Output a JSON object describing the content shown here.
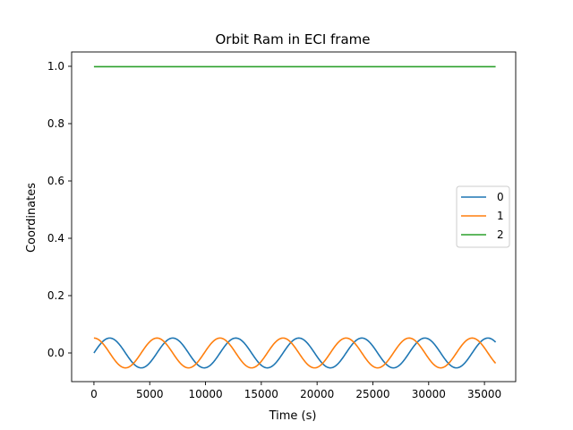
{
  "chart_data": {
    "type": "line",
    "title": "Orbit Ram in ECI frame",
    "xlabel": "Time (s)",
    "ylabel": "Coordinates",
    "xlim": [
      -2000,
      37800
    ],
    "ylim": [
      -0.1,
      1.05
    ],
    "xticks": [
      0,
      5000,
      10000,
      15000,
      20000,
      25000,
      30000,
      35000
    ],
    "yticks": [
      0.0,
      0.2,
      0.4,
      0.6,
      0.8,
      1.0
    ],
    "xtick_labels": [
      "0",
      "5000",
      "10000",
      "15000",
      "20000",
      "25000",
      "30000",
      "35000"
    ],
    "ytick_labels": [
      "0.0",
      "0.2",
      "0.4",
      "0.6",
      "0.8",
      "1.0"
    ],
    "grid": false,
    "legend_position": "center-right",
    "x_start": 0,
    "x_end": 36000,
    "series": [
      {
        "name": "0",
        "color": "#1f77b4",
        "description": "sinusoid, amplitude 0.052, period ~5650 s, starts at 0.0",
        "amplitude": 0.052,
        "period": 5650,
        "phase": "sin",
        "offset": 0.0
      },
      {
        "name": "1",
        "color": "#ff7f0e",
        "description": "sinusoid, amplitude 0.052, period ~5650 s, starts at 0.052",
        "amplitude": 0.052,
        "period": 5650,
        "phase": "cos",
        "offset": 0.0
      },
      {
        "name": "2",
        "color": "#2ca02c",
        "description": "constant 0.9986",
        "amplitude": 0.0,
        "period": 5650,
        "phase": "const",
        "offset": 0.9986
      }
    ]
  }
}
